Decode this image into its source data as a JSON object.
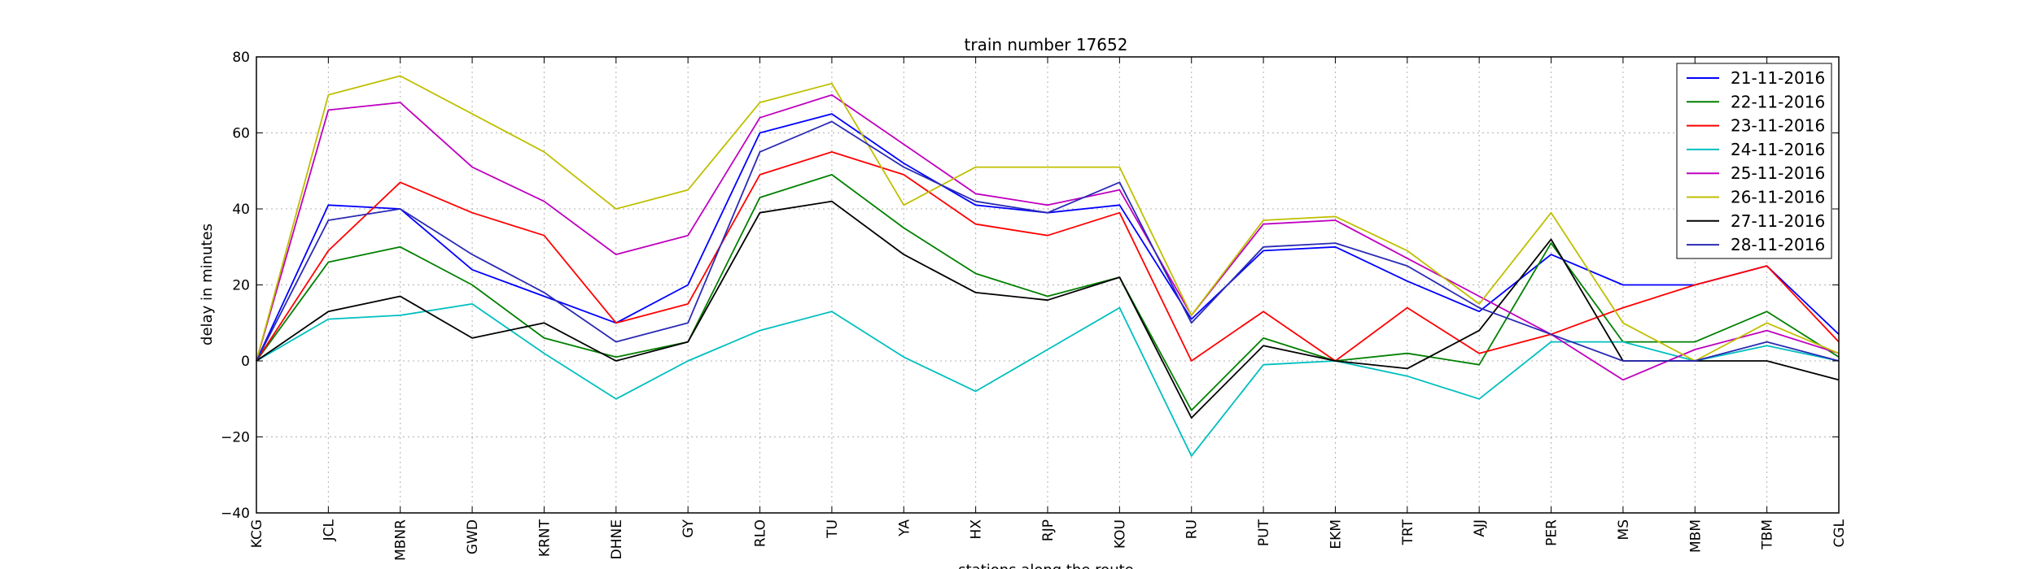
{
  "chart_data": {
    "type": "line",
    "title": "train number 17652",
    "xlabel": "stations along the route",
    "ylabel": "delay in minutes",
    "ylim": [
      -40,
      80
    ],
    "yticks": [
      -40,
      -20,
      0,
      20,
      40,
      60,
      80
    ],
    "ytick_labels": [
      "−40",
      "−20",
      "0",
      "20",
      "40",
      "60",
      "80"
    ],
    "grid": true,
    "legend_position": "top-right",
    "categories": [
      "KCG",
      "JCL",
      "MBNR",
      "GWD",
      "KRNT",
      "DHNE",
      "GY",
      "RLO",
      "TU",
      "YA",
      "HX",
      "RJP",
      "KOU",
      "RU",
      "PUT",
      "EKM",
      "TRT",
      "AJJ",
      "PER",
      "MS",
      "MBM",
      "TBM",
      "CGL"
    ],
    "series": [
      {
        "name": "21-11-2016",
        "color": "#0000ff",
        "values": [
          0,
          41,
          40,
          24,
          17,
          10,
          20,
          60,
          65,
          52,
          41,
          39,
          41,
          11,
          29,
          30,
          21,
          13,
          28,
          20,
          20,
          25,
          7
        ]
      },
      {
        "name": "22-11-2016",
        "color": "#008000",
        "values": [
          0,
          26,
          30,
          20,
          6,
          1,
          5,
          43,
          49,
          35,
          23,
          17,
          22,
          -13,
          6,
          0,
          2,
          -1,
          31,
          5,
          5,
          13,
          1
        ]
      },
      {
        "name": "23-11-2016",
        "color": "#ff0000",
        "values": [
          0,
          29,
          47,
          39,
          33,
          10,
          15,
          49,
          55,
          49,
          36,
          33,
          39,
          0,
          13,
          0,
          14,
          2,
          7,
          14,
          20,
          25,
          5
        ]
      },
      {
        "name": "24-11-2016",
        "color": "#00bfbf",
        "values": [
          0,
          11,
          12,
          15,
          2,
          -10,
          0,
          8,
          13,
          1,
          -8,
          3,
          14,
          -25,
          -1,
          0,
          -4,
          -10,
          5,
          5,
          0,
          4,
          0
        ]
      },
      {
        "name": "25-11-2016",
        "color": "#bf00bf",
        "values": [
          0,
          66,
          68,
          51,
          42,
          28,
          33,
          64,
          70,
          57,
          44,
          41,
          45,
          12,
          36,
          37,
          27,
          17,
          7,
          -5,
          3,
          8,
          2
        ]
      },
      {
        "name": "26-11-2016",
        "color": "#bfbf00",
        "values": [
          0,
          70,
          75,
          65,
          55,
          40,
          45,
          68,
          73,
          41,
          51,
          51,
          51,
          12,
          37,
          38,
          29,
          15,
          39,
          10,
          0,
          10,
          2
        ]
      },
      {
        "name": "27-11-2016",
        "color": "#000000",
        "values": [
          0,
          13,
          17,
          6,
          10,
          0,
          5,
          39,
          42,
          28,
          18,
          16,
          22,
          -15,
          4,
          0,
          -2,
          8,
          32,
          0,
          0,
          0,
          -5
        ]
      },
      {
        "name": "28-11-2016",
        "color": "#2a2ab5",
        "values": [
          0,
          37,
          40,
          28,
          18,
          5,
          10,
          55,
          63,
          51,
          42,
          39,
          47,
          10,
          30,
          31,
          25,
          14,
          7,
          0,
          0,
          5,
          0
        ]
      }
    ]
  }
}
